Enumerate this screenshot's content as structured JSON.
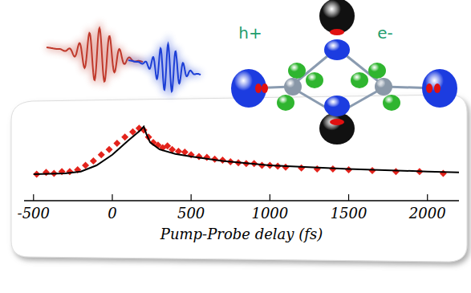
{
  "chart_data": {
    "type": "scatter",
    "x_label": "Pump-Probe delay (fs)",
    "annotations": [
      "h+",
      "e-"
    ],
    "xlim": [
      -560,
      2200
    ],
    "xticks": [
      -500,
      0,
      500,
      1000,
      1500,
      2000
    ],
    "ylim": [
      0,
      1
    ],
    "tick_labels": "x",
    "grid": false,
    "series": [
      {
        "type": "scatter",
        "color": "#e3231c",
        "marker": "diamond",
        "x": [
          -480,
          -420,
          -370,
          -320,
          -270,
          -220,
          -170,
          -120,
          -70,
          -20,
          30,
          80,
          130,
          170,
          200,
          230,
          260,
          290,
          320,
          350,
          380,
          420,
          460,
          500,
          550,
          600,
          650,
          700,
          750,
          800,
          850,
          900,
          950,
          1000,
          1050,
          1100,
          1200,
          1300,
          1400,
          1500,
          1650,
          1800,
          1950,
          2100
        ],
        "values": [
          0.3,
          0.32,
          0.31,
          0.33,
          0.33,
          0.35,
          0.4,
          0.45,
          0.52,
          0.58,
          0.65,
          0.72,
          0.78,
          0.82,
          0.8,
          0.72,
          0.66,
          0.63,
          0.6,
          0.62,
          0.58,
          0.56,
          0.55,
          0.52,
          0.5,
          0.49,
          0.47,
          0.46,
          0.44,
          0.43,
          0.42,
          0.42,
          0.4,
          0.4,
          0.39,
          0.38,
          0.37,
          0.36,
          0.36,
          0.35,
          0.34,
          0.33,
          0.33,
          0.31
        ]
      },
      {
        "type": "line",
        "color": "#000000",
        "line_style": "solid",
        "x": [
          -500,
          -300,
          -200,
          -100,
          0,
          100,
          180,
          200,
          215,
          240,
          300,
          400,
          500,
          700,
          1000,
          1500,
          2000,
          2200
        ],
        "values": [
          0.3,
          0.31,
          0.33,
          0.4,
          0.52,
          0.68,
          0.8,
          0.84,
          0.76,
          0.66,
          0.58,
          0.53,
          0.5,
          0.45,
          0.4,
          0.36,
          0.33,
          0.32
        ]
      }
    ]
  }
}
